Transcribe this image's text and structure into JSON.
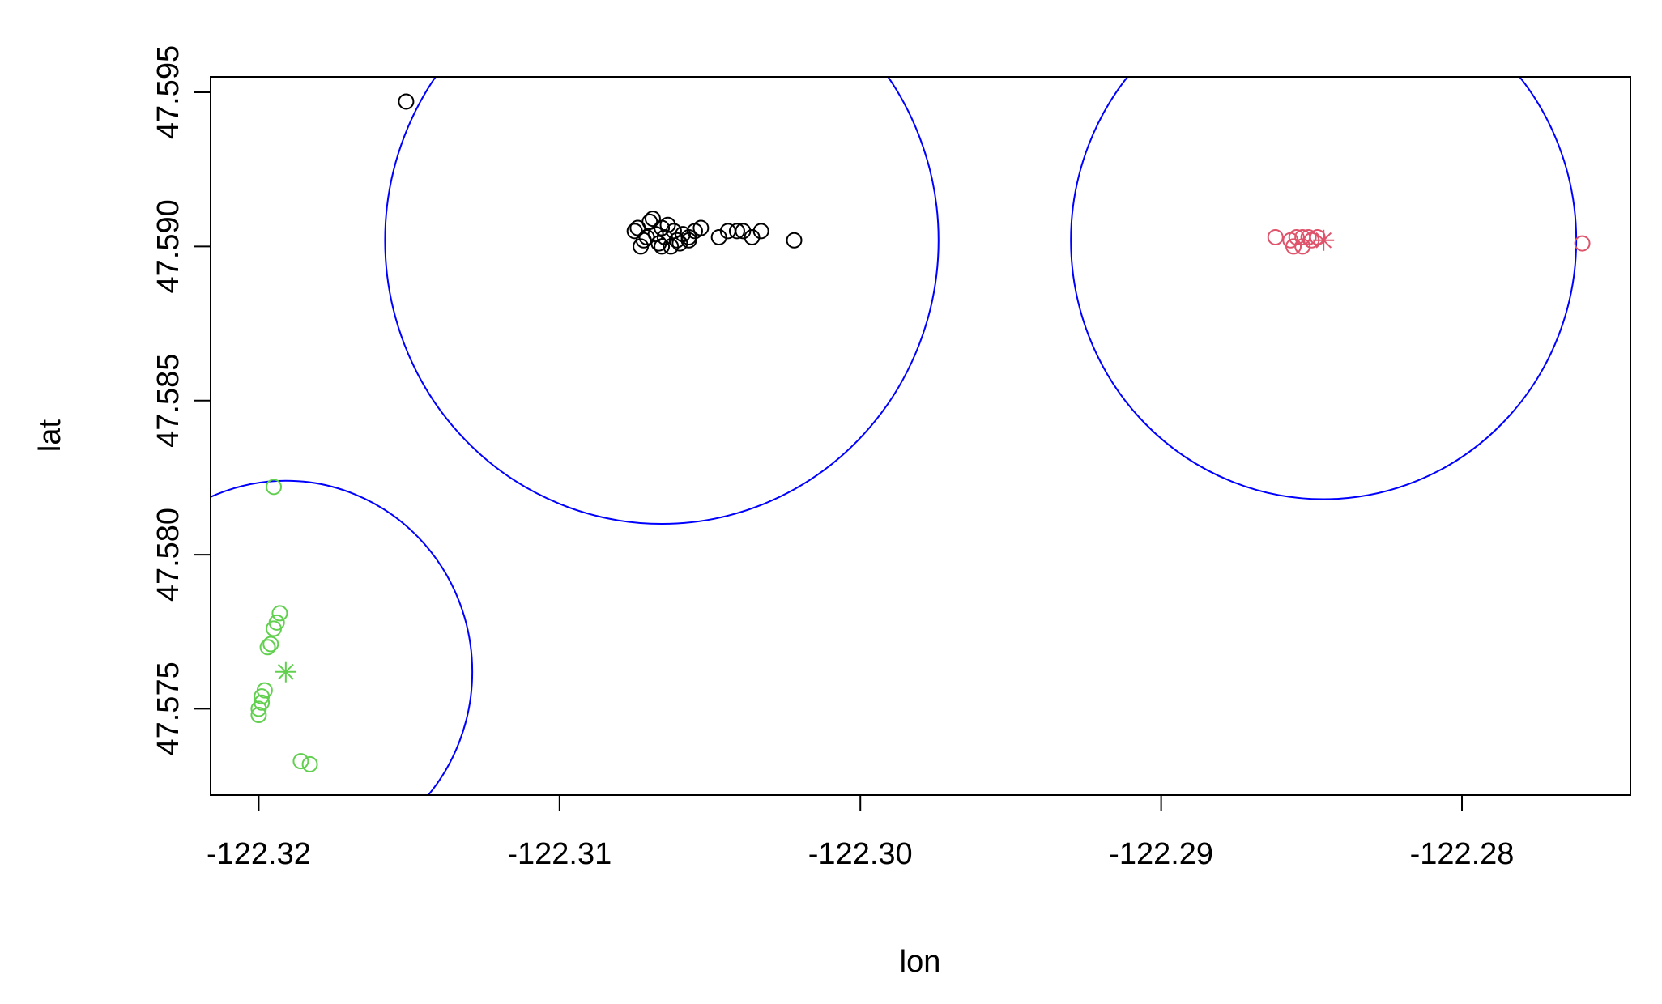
{
  "chart_data": {
    "type": "scatter",
    "xlabel": "lon",
    "ylabel": "lat",
    "xlim": [
      -122.3216,
      -122.2744
    ],
    "ylim": [
      47.5722,
      47.5955
    ],
    "x_ticks": [
      -122.32,
      -122.31,
      -122.3,
      -122.29,
      -122.28
    ],
    "x_tick_labels": [
      "-122.32",
      "-122.31",
      "-122.30",
      "-122.29",
      "-122.28"
    ],
    "y_ticks": [
      47.575,
      47.58,
      47.585,
      47.59,
      47.595
    ],
    "y_tick_labels": [
      "47.575",
      "47.580",
      "47.585",
      "47.590",
      "47.595"
    ],
    "grid": false,
    "legend": "none",
    "circles": [
      {
        "cx": -122.3066,
        "cy": 47.5902,
        "r": 0.0092,
        "color": "#0000ff"
      },
      {
        "cx": -122.2846,
        "cy": 47.5902,
        "r": 0.0084,
        "color": "#0000ff"
      },
      {
        "cx": -122.3191,
        "cy": 47.5762,
        "r": 0.0062,
        "color": "#0000ff"
      }
    ],
    "series": [
      {
        "color": "#000000",
        "marker": "circle",
        "points": [
          [
            -122.3151,
            47.5947
          ],
          [
            -122.3075,
            47.5905
          ],
          [
            -122.3072,
            47.5902
          ],
          [
            -122.307,
            47.5908
          ],
          [
            -122.3068,
            47.5904
          ],
          [
            -122.3067,
            47.5901
          ],
          [
            -122.3066,
            47.5906
          ],
          [
            -122.3065,
            47.5903
          ],
          [
            -122.3063,
            47.59
          ],
          [
            -122.3062,
            47.5905
          ],
          [
            -122.3061,
            47.5902
          ],
          [
            -122.3069,
            47.5909
          ],
          [
            -122.3073,
            47.59
          ],
          [
            -122.3074,
            47.5906
          ],
          [
            -122.3064,
            47.5907
          ],
          [
            -122.306,
            47.5901
          ],
          [
            -122.3059,
            47.5904
          ],
          [
            -122.3057,
            47.5903
          ],
          [
            -122.3055,
            47.5905
          ],
          [
            -122.3071,
            47.5903
          ],
          [
            -122.3066,
            47.59
          ],
          [
            -122.3057,
            47.5902
          ],
          [
            -122.3053,
            47.5906
          ],
          [
            -122.3047,
            47.5903
          ],
          [
            -122.3044,
            47.5905
          ],
          [
            -122.3041,
            47.5905
          ],
          [
            -122.3039,
            47.5905
          ],
          [
            -122.3036,
            47.5903
          ],
          [
            -122.3033,
            47.5905
          ],
          [
            -122.3022,
            47.5902
          ]
        ]
      },
      {
        "color": "#df536b",
        "marker": "circle",
        "points": [
          [
            -122.2862,
            47.5903
          ],
          [
            -122.2857,
            47.5902
          ],
          [
            -122.2855,
            47.5903
          ],
          [
            -122.2853,
            47.5903
          ],
          [
            -122.2851,
            47.5903
          ],
          [
            -122.2856,
            47.59
          ],
          [
            -122.2853,
            47.59
          ],
          [
            -122.285,
            47.5902
          ],
          [
            -122.2848,
            47.5903
          ],
          [
            -122.276,
            47.5901
          ]
        ]
      },
      {
        "color": "#61d04f",
        "marker": "circle",
        "points": [
          [
            -122.3195,
            47.5822
          ],
          [
            -122.3193,
            47.5781
          ],
          [
            -122.3194,
            47.5778
          ],
          [
            -122.3195,
            47.5776
          ],
          [
            -122.3196,
            47.5771
          ],
          [
            -122.3197,
            47.577
          ],
          [
            -122.3198,
            47.5756
          ],
          [
            -122.3199,
            47.5754
          ],
          [
            -122.3199,
            47.5752
          ],
          [
            -122.32,
            47.575
          ],
          [
            -122.32,
            47.5748
          ],
          [
            -122.3186,
            47.5733
          ],
          [
            -122.3183,
            47.5732
          ]
        ]
      }
    ],
    "centers": [
      {
        "color": "#df536b",
        "x": -122.2846,
        "y": 47.5902,
        "marker": "asterisk"
      },
      {
        "color": "#61d04f",
        "x": -122.3191,
        "y": 47.5762,
        "marker": "asterisk"
      }
    ]
  }
}
